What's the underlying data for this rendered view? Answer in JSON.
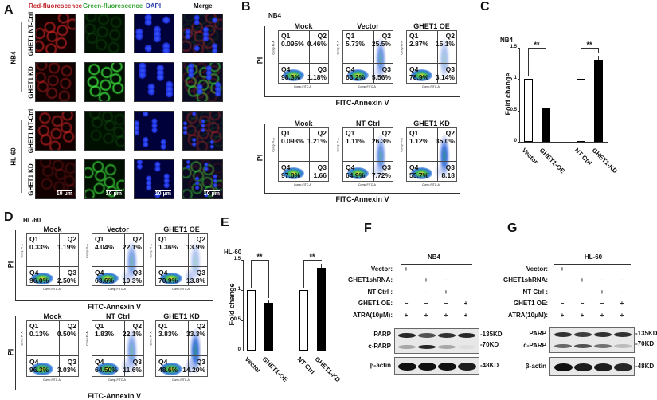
{
  "panel_a": {
    "label": "A",
    "col_headers": [
      {
        "text": "Red-fluorescence",
        "color": "#c0282c"
      },
      {
        "text": "Green-fluorescence",
        "color": "#3aa53a"
      },
      {
        "text": "DAPI",
        "color": "#2a3fb0"
      },
      {
        "text": "Merge",
        "color": "#111111"
      }
    ],
    "groups": [
      {
        "cell": "NB4",
        "rows": [
          "GHET1 NT-Ctrl",
          "GHET1 KD"
        ]
      },
      {
        "cell": "HL-60",
        "rows": [
          "GHET1 NT-Ctrl",
          "GHET1 KD"
        ]
      }
    ],
    "scale_bar": "10 μm"
  },
  "panel_b": {
    "label": "B",
    "cell": "NB4",
    "xlabel": "FITC-Annexin V",
    "ylabel": "PI",
    "x_channel": "Comp-FITC-A",
    "y_channel": "Comp-PI-A",
    "rows": [
      [
        {
          "title": "Mock",
          "q1": "0.095%",
          "q2": "0.46%",
          "q3": "1.18%",
          "q4": "98.3%"
        },
        {
          "title": "Vector",
          "q1": "5.73%",
          "q2": "25.5%",
          "q3": "5.56%",
          "q4": "63.2%"
        },
        {
          "title": "GHET1 OE",
          "q1": "2.87%",
          "q2": "15.1%",
          "q3": "3.14%",
          "q4": "78.9%"
        }
      ],
      [
        {
          "title": "Mock",
          "q1": "0.093%",
          "q2": "1.21%",
          "q3": "1.66",
          "q4": "97.0%"
        },
        {
          "title": "NT Ctrl",
          "q1": "1.11%",
          "q2": "26.3%",
          "q3": "7.72%",
          "q4": "64.9%"
        },
        {
          "title": "GHET1 KD",
          "q1": "1.12%",
          "q2": "35.0%",
          "q3": "8.18",
          "q4": "55.7%"
        }
      ]
    ]
  },
  "panel_d": {
    "label": "D",
    "cell": "HL-60",
    "xlabel": "FITC-Annexin V",
    "ylabel": "PI",
    "x_channel": "Comp-FITC-A",
    "y_channel": "Comp-PI-A",
    "rows": [
      [
        {
          "title": "Mock",
          "q1": "0.33%",
          "q2": "1.19%",
          "q3": "2.50%",
          "q4": "96.0%"
        },
        {
          "title": "Vector",
          "q1": "4.04%",
          "q2": "22.1%",
          "q3": "10.3%",
          "q4": "63.6%"
        },
        {
          "title": "GHET1 OE",
          "q1": "1.36%",
          "q2": "13.9%",
          "q3": "13.8%",
          "q4": "70.9%"
        }
      ],
      [
        {
          "title": "Mock",
          "q1": "0.13%",
          "q2": "0.50%",
          "q3": "3.03%",
          "q4": "96.3%"
        },
        {
          "title": "NT Ctrl",
          "q1": "1.83%",
          "q2": "22.1%",
          "q3": "11.6%",
          "q4": "64.50%"
        },
        {
          "title": "GHET1 KD",
          "q1": "3.83%",
          "q2": "33.3%",
          "q3": "14.20%",
          "q4": "48.6%"
        }
      ]
    ]
  },
  "chart_data": [
    {
      "panel": "C",
      "type": "bar",
      "title": "NB4",
      "ylabel": "Fold change",
      "ylim": [
        0,
        1.5
      ],
      "yticks": [
        "0",
        "0.5",
        "1",
        "1.5"
      ],
      "categories": [
        "Vector",
        "GHET1-OE",
        "NT Ctrl",
        "GHET1-KD"
      ],
      "values": [
        1.0,
        0.53,
        1.0,
        1.31
      ],
      "errors": [
        0,
        0.04,
        0,
        0.06
      ],
      "fills": [
        "#ffffff",
        "#000000",
        "#ffffff",
        "#000000"
      ],
      "significance": [
        "**",
        "**"
      ]
    },
    {
      "panel": "E",
      "type": "bar",
      "title": "HL-60",
      "ylabel": "Fold change",
      "ylim": [
        0,
        1.5
      ],
      "yticks": [
        "0",
        "0.5",
        "1",
        "1.5"
      ],
      "categories": [
        "Vector",
        "GHET1-OE",
        "NT Ctrl",
        "GHET1-KD"
      ],
      "values": [
        1.0,
        0.79,
        1.0,
        1.37
      ],
      "errors": [
        0,
        0.04,
        0,
        0.07
      ],
      "fills": [
        "#ffffff",
        "#000000",
        "#ffffff",
        "#000000"
      ],
      "significance": [
        "**",
        "**"
      ]
    }
  ],
  "blots": [
    {
      "label": "F",
      "cell": "NB4",
      "conditions": [
        {
          "name": "Vector:",
          "lanes": [
            "+",
            "−",
            "−",
            "−"
          ]
        },
        {
          "name": "GHET1shRNA:",
          "lanes": [
            "−",
            "+",
            "−",
            "−"
          ]
        },
        {
          "name": "NT Ctrl :",
          "lanes": [
            "−",
            "−",
            "+",
            "−"
          ]
        },
        {
          "name": "GHET1 OE:",
          "lanes": [
            "−",
            "−",
            "−",
            "+"
          ]
        },
        {
          "name": "ATRA(10μM):",
          "lanes": [
            "+",
            "+",
            "+",
            "+"
          ]
        }
      ],
      "proteins": [
        "PARP",
        "c-PARP",
        "β-actin"
      ],
      "markers": [
        "-135KD",
        "-70KD",
        "-48KD"
      ],
      "band_intensity": {
        "PARP": [
          0.9,
          0.7,
          0.85,
          0.9
        ],
        "c-PARP": [
          0.3,
          0.9,
          0.3,
          0.05
        ],
        "β-actin": [
          1,
          1,
          1,
          0.95
        ]
      }
    },
    {
      "label": "G",
      "cell": "HL-60",
      "conditions": [
        {
          "name": "Vector:",
          "lanes": [
            "+",
            "−",
            "−",
            "−"
          ]
        },
        {
          "name": "GHET1shRNA:",
          "lanes": [
            "−",
            "+",
            "−",
            "−"
          ]
        },
        {
          "name": "NT Ctrl :",
          "lanes": [
            "−",
            "−",
            "+",
            "−"
          ]
        },
        {
          "name": "GHET1 OE:",
          "lanes": [
            "−",
            "−",
            "−",
            "+"
          ]
        },
        {
          "name": "ATRA(10μM):",
          "lanes": [
            "+",
            "+",
            "+",
            "+"
          ]
        }
      ],
      "proteins": [
        "PARP",
        "c-PARP",
        "β-actin"
      ],
      "markers": [
        "-135KD",
        "-70KD",
        "-48KD"
      ],
      "band_intensity": {
        "PARP": [
          0.85,
          0.8,
          0.85,
          0.85
        ],
        "c-PARP": [
          0.6,
          0.7,
          0.55,
          0.2
        ],
        "β-actin": [
          1,
          0.95,
          0.95,
          0.9
        ]
      }
    }
  ]
}
